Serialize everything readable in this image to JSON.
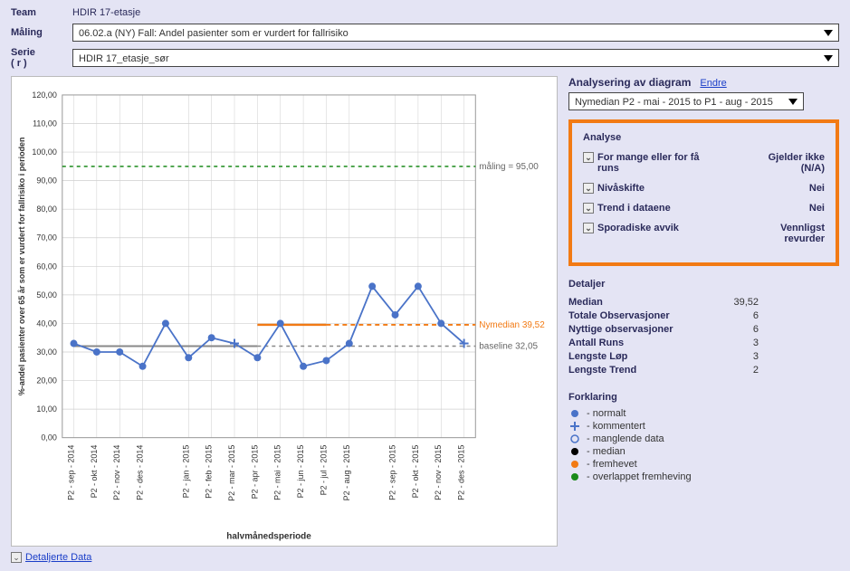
{
  "header": {
    "team_label": "Team",
    "team_value": "HDIR 17-etasje",
    "maling_label": "Måling",
    "maling_value": "06.02.a (NY) Fall: Andel pasienter som er vurdert for fallrisiko",
    "serie_label": "Serie",
    "serie_label2": "( r )",
    "serie_value": "HDIR 17_etasje_sør"
  },
  "side": {
    "title": "Analysering av diagram",
    "change_link": "Endre",
    "range_value": "Nymedian P2 - mai - 2015 to P1 - aug - 2015"
  },
  "analyse": {
    "heading": "Analyse",
    "rows": [
      {
        "label": "For mange eller for få runs",
        "value": "Gjelder ikke (N/A)"
      },
      {
        "label": "Nivåskifte",
        "value": "Nei"
      },
      {
        "label": "Trend i dataene",
        "value": "Nei"
      },
      {
        "label": "Sporadiske avvik",
        "value": "Vennligst revurder"
      }
    ]
  },
  "details": {
    "heading": "Detaljer",
    "rows": [
      {
        "label": "Median",
        "value": "39,52"
      },
      {
        "label": "Totale Observasjoner",
        "value": "6"
      },
      {
        "label": "Nyttige observasjoner",
        "value": "6"
      },
      {
        "label": "Antall Runs",
        "value": "3"
      },
      {
        "label": "Lengste Løp",
        "value": "3"
      },
      {
        "label": "Lengste Trend",
        "value": "2"
      }
    ]
  },
  "legend": {
    "heading": "Forklaring",
    "items": [
      {
        "key": "normalt",
        "label": "- normalt",
        "color": "#4a73c8",
        "shape": "dot"
      },
      {
        "key": "kommentert",
        "label": "- kommentert",
        "color": "#4a73c8",
        "shape": "plus"
      },
      {
        "key": "manglende",
        "label": "- manglende data",
        "color": "#4a73c8",
        "shape": "hollow"
      },
      {
        "key": "median",
        "label": "- median",
        "color": "#000000",
        "shape": "dot"
      },
      {
        "key": "fremhevet",
        "label": "- fremhevet",
        "color": "#f27a14",
        "shape": "dot"
      },
      {
        "key": "overlappet",
        "label": "- overlappet fremheving",
        "color": "#1a8a1a",
        "shape": "dot"
      }
    ]
  },
  "footer": {
    "label": "Detaljerte Data"
  },
  "chart": {
    "type": "line",
    "y_axis_label": "%-andel pasienter over 65 år som er vurdert for fallrisiko i perioden",
    "x_axis_label": "halvmånedsperiode",
    "y_min": 0,
    "y_max": 120,
    "y_step": 10,
    "x_labels": [
      "P2 - sep - 2014",
      "P2 - okt - 2014",
      "P2 - nov - 2014",
      "P2 - des - 2014",
      "P2 - jan - 2015",
      "P2 - feb - 2015",
      "P2 - mar - 2015",
      "P2 - apr - 2015",
      "P2 - mai - 2015",
      "P2 - jun - 2015",
      "P2 - jul - 2015",
      "P2 - aug - 2015",
      "P2 - sep - 2015",
      "P2 - okt - 2015",
      "P2 - nov - 2015",
      "P2 - des - 2015"
    ],
    "line_color": "#4a73c8",
    "marker_color": "#4a73c8",
    "grid_color": "#cfcfcf",
    "background": "#ffffff",
    "goal_line": {
      "value": 95,
      "color": "#1a8a1a",
      "dash": "4,4",
      "label": "måling = 95,00"
    },
    "baseline": {
      "from_idx": 0,
      "to_idx": 8,
      "value": 32.05,
      "color": "#888888",
      "label": "baseline 32,05"
    },
    "nymedian": {
      "from_idx": 8,
      "to_idx": 15,
      "value": 39.52,
      "solid_to_idx": 11,
      "color": "#f27a14",
      "label": "Nymedian 39,52"
    },
    "points": [
      {
        "x": 0,
        "y": 33,
        "type": "normal"
      },
      {
        "x": 1,
        "y": 30,
        "type": "normal"
      },
      {
        "x": 2,
        "y": 30,
        "type": "normal"
      },
      {
        "x": 3,
        "y": 25,
        "type": "normal"
      },
      {
        "x": 4,
        "y": 40,
        "type": "normal"
      },
      {
        "x": 5,
        "y": 28,
        "type": "normal"
      },
      {
        "x": 6,
        "y": 35,
        "type": "normal"
      },
      {
        "x": 7,
        "y": 33,
        "type": "kommentert"
      },
      {
        "x": 8,
        "y": 28,
        "type": "normal"
      },
      {
        "x": 9,
        "y": 40,
        "type": "normal"
      },
      {
        "x": 10,
        "y": 25,
        "type": "normal"
      },
      {
        "x": 11,
        "y": 27,
        "type": "normal"
      },
      {
        "x": 12,
        "y": 33,
        "type": "normal"
      },
      {
        "x": 13,
        "y": 53,
        "type": "normal"
      },
      {
        "x": 14,
        "y": 43,
        "type": "normal"
      },
      {
        "x": 15,
        "y": 53,
        "type": "normal"
      },
      {
        "x": 16,
        "y": 40,
        "type": "normal"
      },
      {
        "x": 17,
        "y": 33,
        "type": "kommentert"
      }
    ],
    "x_positions_count": 18,
    "label_x_indices": [
      0,
      1,
      2,
      3,
      4,
      5,
      6,
      7,
      8,
      9,
      10,
      11,
      12,
      13,
      14,
      15
    ]
  }
}
